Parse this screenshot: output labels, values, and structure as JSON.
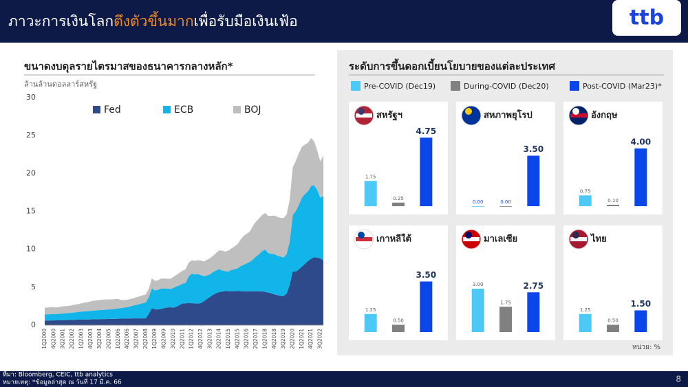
{
  "header": {
    "title_parts": [
      "ภาวะการเงินโลก",
      "ตึงตัวขึ้นมาก",
      "เพื่อรับมือเงินเฟ้อ"
    ],
    "logo": "ttb"
  },
  "chart_data": [
    {
      "type": "stacked-area",
      "title": "ขนาดงบดุลรายไตรมาสของธนาคารกลางหลัก*",
      "y_label": "ล้านล้านดอลลาร์สหรัฐ",
      "ylim": [
        0,
        30
      ],
      "yticks": [
        0,
        5,
        10,
        15,
        20,
        25,
        30
      ],
      "categories": [
        "1Q2000",
        null,
        null,
        "4Q2000",
        null,
        null,
        "3Q2001",
        null,
        null,
        "2Q2002",
        null,
        null,
        "1Q2003",
        null,
        null,
        "4Q2003",
        null,
        null,
        "3Q2004",
        null,
        null,
        "2Q2005",
        null,
        null,
        "1Q2006",
        null,
        null,
        "4Q2006",
        null,
        null,
        "3Q2007",
        null,
        null,
        "2Q2008",
        null,
        null,
        "1Q2009",
        null,
        null,
        "4Q2009",
        null,
        null,
        "3Q2010",
        null,
        null,
        "2Q2011",
        null,
        null,
        "1Q2012",
        null,
        null,
        "4Q2012",
        null,
        null,
        "3Q2013",
        null,
        null,
        "2Q2014",
        null,
        null,
        "1Q2015",
        null,
        null,
        "4Q2015",
        null,
        null,
        "3Q2016",
        null,
        null,
        "2Q2017",
        null,
        null,
        "1Q2018",
        null,
        null,
        "4Q2018",
        null,
        null,
        "3Q2019",
        null,
        null,
        "2Q2020",
        null,
        null,
        "1Q2021",
        null,
        null,
        "4Q2021",
        null,
        null,
        "3Q2022",
        null
      ],
      "series": [
        {
          "name": "Fed",
          "color": "#2e4a8b",
          "values": [
            0.6,
            0.61,
            0.62,
            0.62,
            0.63,
            0.64,
            0.66,
            0.67,
            0.68,
            0.69,
            0.71,
            0.72,
            0.73,
            0.74,
            0.75,
            0.76,
            0.77,
            0.78,
            0.79,
            0.8,
            0.81,
            0.82,
            0.83,
            0.84,
            0.85,
            0.86,
            0.87,
            0.87,
            0.88,
            0.89,
            0.89,
            0.89,
            0.89,
            0.9,
            1.5,
            2.24,
            2.08,
            2.06,
            2.14,
            2.24,
            2.33,
            2.36,
            2.3,
            2.42,
            2.65,
            2.87,
            2.86,
            2.93,
            2.89,
            2.88,
            2.83,
            2.91,
            3.15,
            3.46,
            3.72,
            4.01,
            4.22,
            4.37,
            4.42,
            4.5,
            4.48,
            4.48,
            4.47,
            4.49,
            4.48,
            4.47,
            4.46,
            4.45,
            4.47,
            4.46,
            4.46,
            4.45,
            4.37,
            4.31,
            4.2,
            4.06,
            3.95,
            3.85,
            3.82,
            4.17,
            5.3,
            7.1,
            7.06,
            7.36,
            7.72,
            8.1,
            8.45,
            8.76,
            8.94,
            8.91,
            8.8,
            8.55
          ]
        },
        {
          "name": "ECB",
          "color": "#12b5ea",
          "values": [
            0.8,
            0.82,
            0.83,
            0.85,
            0.85,
            0.86,
            0.88,
            0.9,
            0.92,
            0.95,
            0.98,
            1.02,
            1.05,
            1.08,
            1.1,
            1.13,
            1.15,
            1.18,
            1.2,
            1.22,
            1.23,
            1.25,
            1.27,
            1.3,
            1.35,
            1.4,
            1.45,
            1.5,
            1.6,
            1.7,
            1.8,
            1.9,
            2.0,
            2.1,
            2.2,
            2.6,
            2.5,
            2.6,
            2.7,
            2.6,
            2.5,
            2.4,
            2.6,
            2.7,
            2.6,
            2.6,
            2.7,
            3.5,
            3.9,
            3.8,
            3.9,
            3.7,
            3.3,
            3.1,
            3.0,
            3.0,
            3.0,
            3.0,
            2.8,
            2.6,
            2.6,
            2.8,
            2.9,
            3.0,
            3.3,
            3.5,
            3.7,
            3.9,
            4.2,
            4.6,
            4.9,
            5.3,
            5.6,
            5.2,
            5.2,
            5.3,
            5.2,
            5.2,
            5.1,
            5.2,
            5.7,
            7.4,
            8.0,
            8.5,
            9.1,
            9.2,
            9.2,
            9.6,
            9.5,
            8.9,
            8.0,
            8.5
          ]
        },
        {
          "name": "BOJ",
          "color": "#bfbfbf",
          "values": [
            0.9,
            0.9,
            0.92,
            0.9,
            0.85,
            0.9,
            0.95,
            0.95,
            0.95,
            1.0,
            1.02,
            1.05,
            1.1,
            1.15,
            1.18,
            1.25,
            1.3,
            1.3,
            1.32,
            1.35,
            1.35,
            1.32,
            1.3,
            1.3,
            1.25,
            1.05,
            1.0,
            0.98,
            0.98,
            0.95,
            1.0,
            1.0,
            1.05,
            1.05,
            1.1,
            1.35,
            1.25,
            1.25,
            1.3,
            1.3,
            1.3,
            1.35,
            1.45,
            1.5,
            1.65,
            1.7,
            1.8,
            1.8,
            1.75,
            1.8,
            1.85,
            1.9,
            1.95,
            2.05,
            2.1,
            2.15,
            2.3,
            2.5,
            2.6,
            2.6,
            2.75,
            2.85,
            3.0,
            3.2,
            3.5,
            3.8,
            3.9,
            4.0,
            4.4,
            4.6,
            4.7,
            4.8,
            4.8,
            4.9,
            5.0,
            5.1,
            5.1,
            5.1,
            5.2,
            5.2,
            5.5,
            6.3,
            6.6,
            6.8,
            6.7,
            6.5,
            6.4,
            6.3,
            5.8,
            5.2,
            4.8,
            5.3
          ]
        }
      ]
    },
    {
      "type": "bar-panels",
      "title": "ระดับการขึ้นดอกเบี้ยนโยบายของแต่ละประเทศ",
      "unit_note": "หน่วย: %",
      "ylim": [
        0,
        5
      ],
      "categories": [
        "สหรัฐฯ",
        "สหภาพยุโรป",
        "อังกฤษ",
        "เกาหลีใต้",
        "มาเลเซีย",
        "ไทย"
      ],
      "series": [
        {
          "name": "Pre-COVID (Dec19)",
          "color": "#4dc9f6",
          "values": [
            1.75,
            0,
            0.75,
            1.25,
            3,
            1.25
          ],
          "value_labels": [
            "1.75",
            "0.00",
            "0.75",
            "1.25",
            "3.00",
            "1.25"
          ]
        },
        {
          "name": "During-COVID (Dec20)",
          "color": "#808080",
          "values": [
            0.25,
            0,
            0.1,
            0.5,
            1.75,
            0.5
          ],
          "value_labels": [
            "0.25",
            "0.00",
            "0.10",
            "0.50",
            "1.75",
            "0.50"
          ]
        },
        {
          "name": "Post-COVID (Mar23)*",
          "color": "#0b46ea",
          "values": [
            4.75,
            3.5,
            4,
            3.5,
            2.75,
            1.5
          ],
          "value_labels": [
            "4.75",
            "3.50",
            "4.00",
            "3.50",
            "2.75",
            "1.50"
          ]
        }
      ]
    }
  ],
  "footer": {
    "source": "ที่มา: Bloomberg, CEIC, ttb analytics",
    "note": "หมายเหตุ: *ข้อมูลล่าสุด ณ วันที่ 17 มี.ค. 66",
    "page_number": "8"
  }
}
